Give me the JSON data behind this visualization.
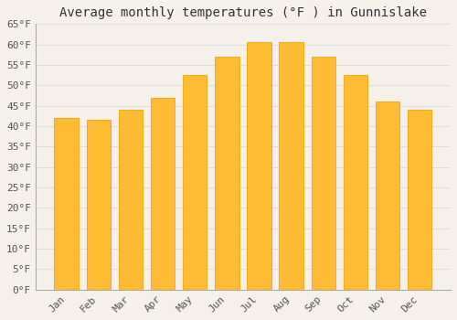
{
  "title": "Average monthly temperatures (°F ) in Gunnislake",
  "months": [
    "Jan",
    "Feb",
    "Mar",
    "Apr",
    "May",
    "Jun",
    "Jul",
    "Aug",
    "Sep",
    "Oct",
    "Nov",
    "Dec"
  ],
  "values": [
    42,
    41.5,
    44,
    47,
    52.5,
    57,
    60.5,
    60.5,
    57,
    52.5,
    46,
    44
  ],
  "bar_color_face": "#FFBB33",
  "bar_color_edge": "#F0A500",
  "background_color": "#F5F0EA",
  "grid_color": "#DDDDDD",
  "title_fontsize": 10,
  "tick_fontsize": 8,
  "ylim": [
    0,
    65
  ],
  "yticks": [
    0,
    5,
    10,
    15,
    20,
    25,
    30,
    35,
    40,
    45,
    50,
    55,
    60,
    65
  ]
}
